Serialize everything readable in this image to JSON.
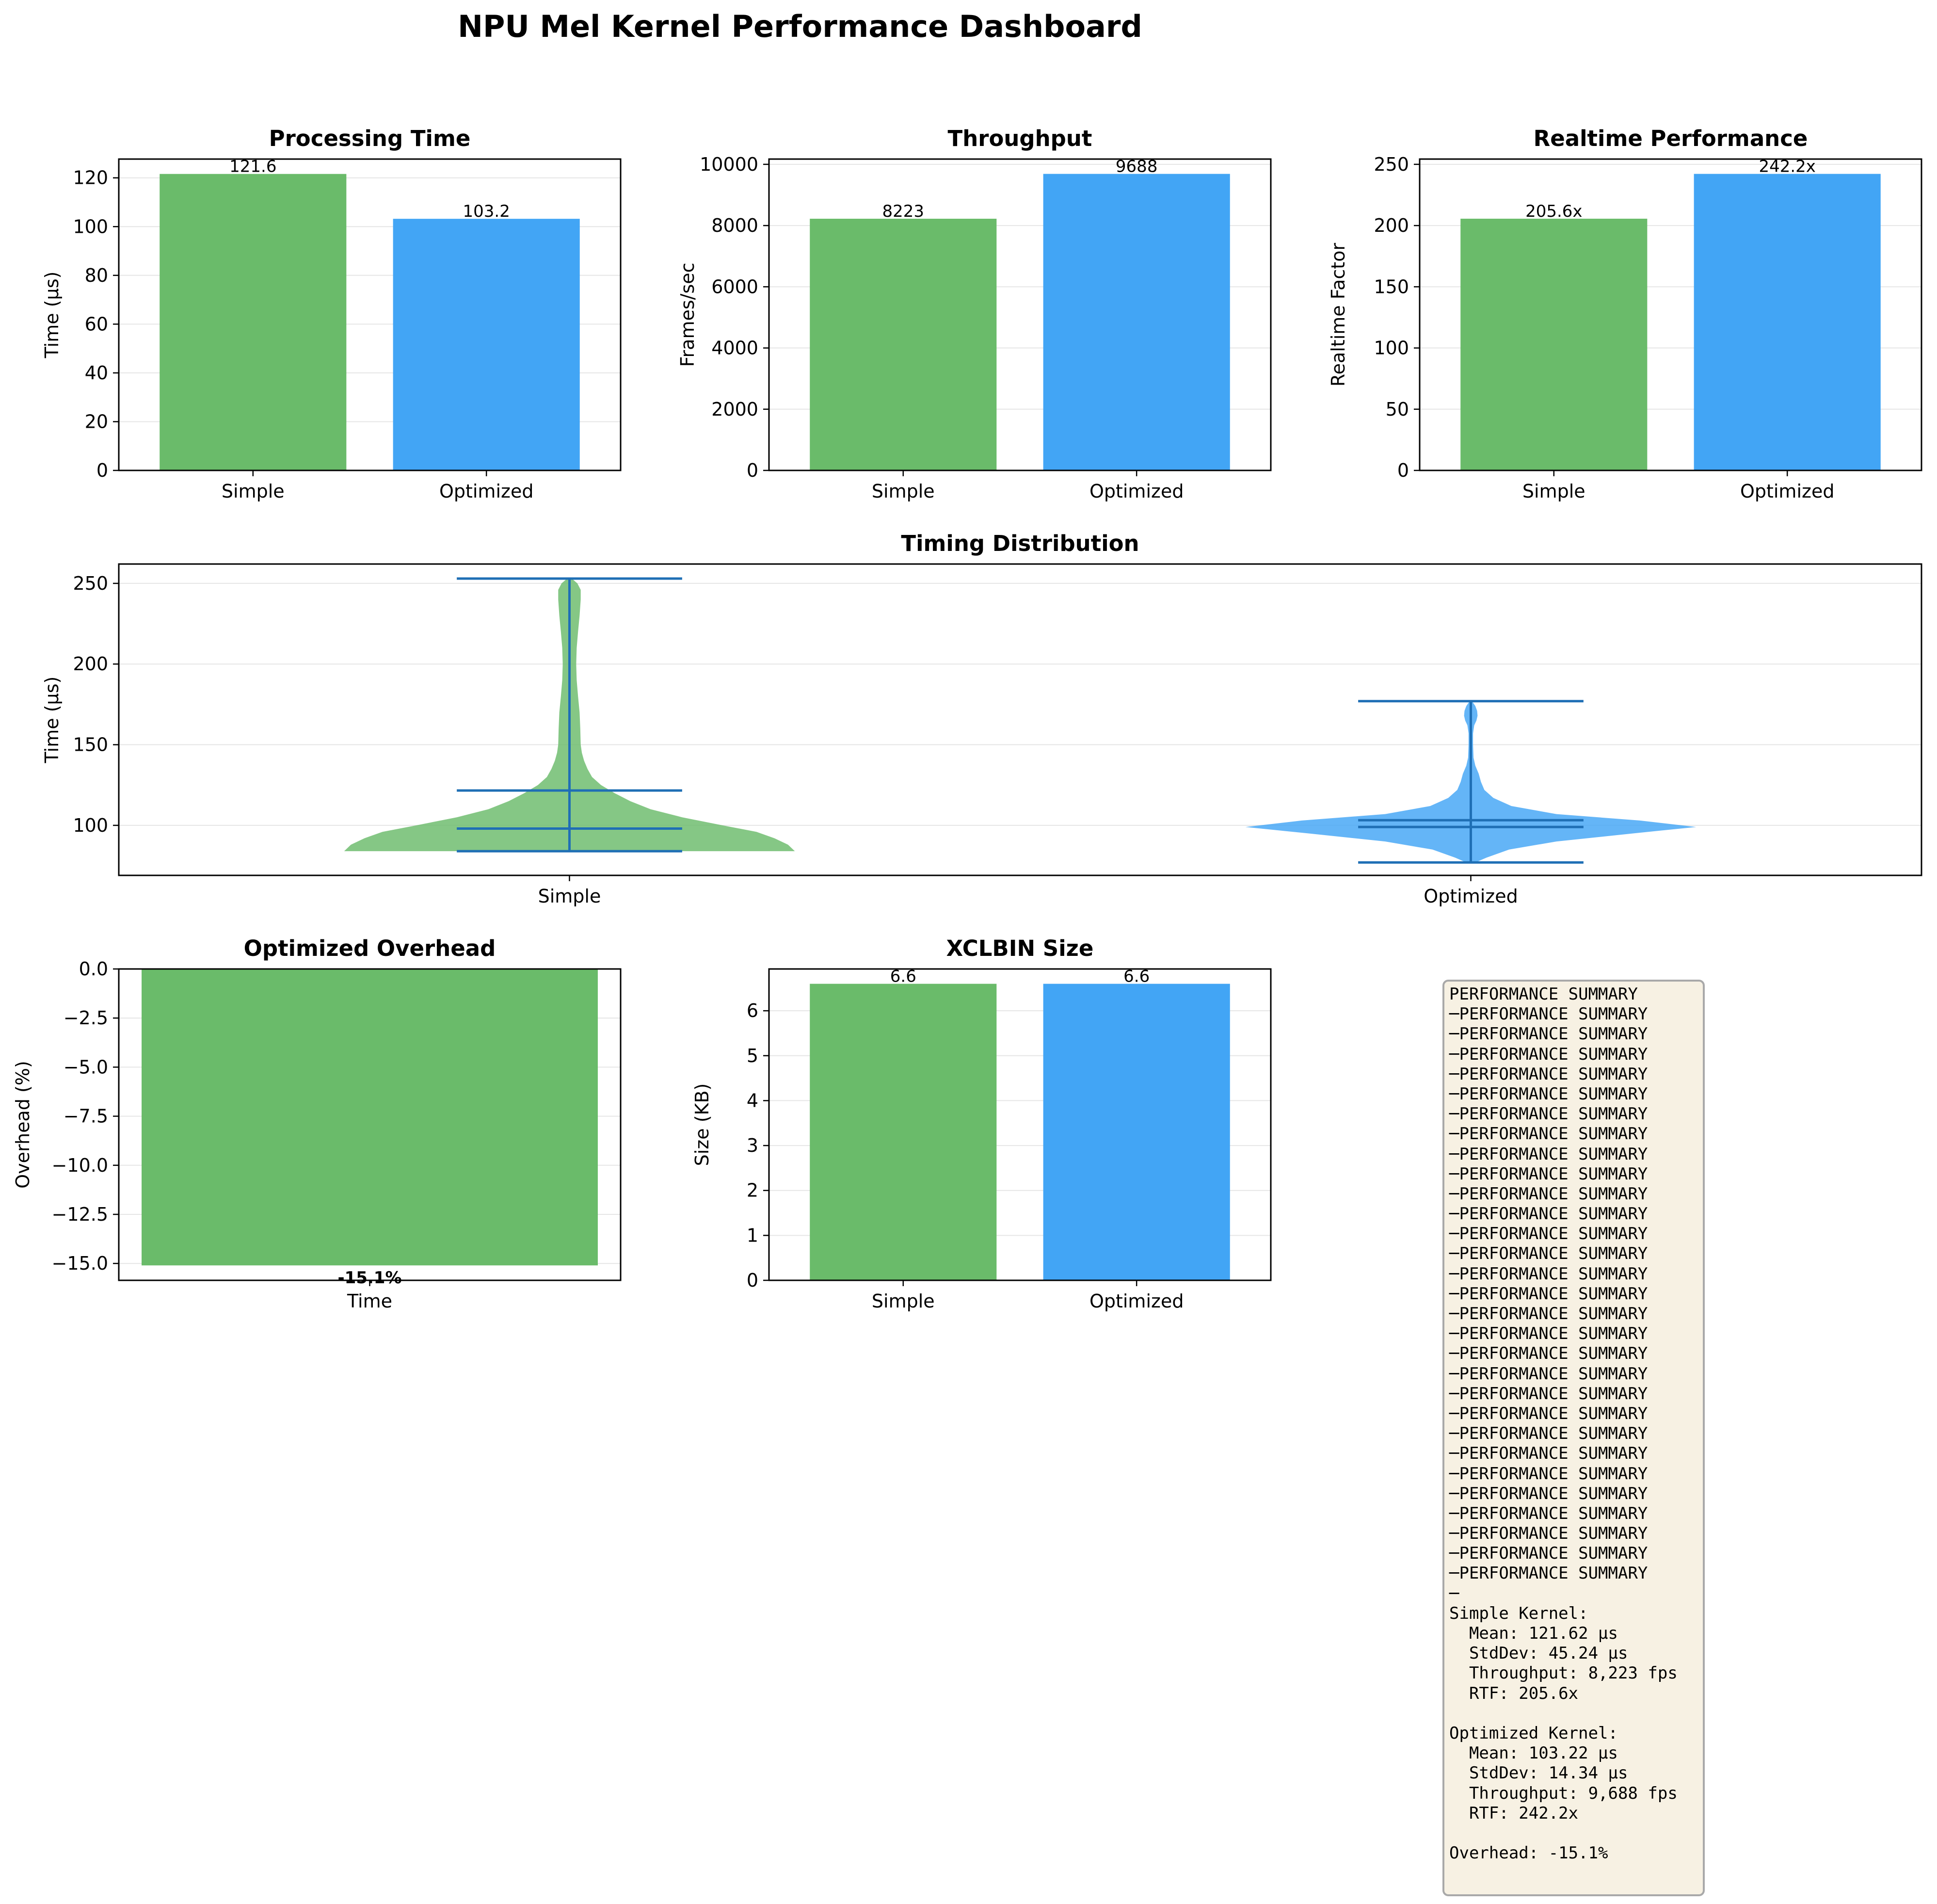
{
  "page_title": "NPU Mel Kernel Performance Dashboard",
  "colors": {
    "simple": "#6abb6a",
    "optimized": "#42a5f5",
    "stat_line": "#1f6fb5",
    "grid": "#e6e6e6",
    "summary_bg": "#f7f1e3",
    "summary_border": "#a9a9a9"
  },
  "chart_data": [
    {
      "id": "processing-time",
      "type": "bar",
      "title": "Processing Time",
      "ylabel": "Time (µs)",
      "xlabel": "",
      "categories": [
        "Simple",
        "Optimized"
      ],
      "values": [
        121.6,
        103.2
      ],
      "value_labels": [
        "121.6",
        "103.2"
      ],
      "ylim": [
        0,
        127.7
      ],
      "yticks": [
        0,
        20,
        40,
        60,
        80,
        100,
        120
      ],
      "ytick_labels": [
        "0",
        "20",
        "40",
        "60",
        "80",
        "100",
        "120"
      ],
      "grid": true
    },
    {
      "id": "throughput",
      "type": "bar",
      "title": "Throughput",
      "ylabel": "Frames/sec",
      "xlabel": "",
      "categories": [
        "Simple",
        "Optimized"
      ],
      "values": [
        8223,
        9688
      ],
      "value_labels": [
        "8223",
        "9688"
      ],
      "ylim": [
        0,
        10172
      ],
      "yticks": [
        0,
        2000,
        4000,
        6000,
        8000,
        10000
      ],
      "ytick_labels": [
        "0",
        "2000",
        "4000",
        "6000",
        "8000",
        "10000"
      ],
      "grid": true
    },
    {
      "id": "realtime-performance",
      "type": "bar",
      "title": "Realtime Performance",
      "ylabel": "Realtime Factor",
      "xlabel": "",
      "categories": [
        "Simple",
        "Optimized"
      ],
      "values": [
        205.6,
        242.2
      ],
      "value_labels": [
        "205.6x",
        "242.2x"
      ],
      "ylim": [
        0,
        254.3
      ],
      "yticks": [
        0,
        50,
        100,
        150,
        200,
        250
      ],
      "ytick_labels": [
        "0",
        "50",
        "100",
        "150",
        "200",
        "250"
      ],
      "grid": true
    },
    {
      "id": "timing-distribution",
      "type": "violin",
      "title": "Timing Distribution",
      "ylabel": "Time (µs)",
      "xlabel": "",
      "categories": [
        "Simple",
        "Optimized"
      ],
      "ylim": [
        69,
        262
      ],
      "yticks": [
        100,
        150,
        200,
        250
      ],
      "ytick_labels": [
        "100",
        "150",
        "200",
        "250"
      ],
      "grid": true,
      "series": [
        {
          "category": "Simple",
          "min": 84,
          "max": 253,
          "mean": 121.6,
          "median": 98,
          "density": [
            [
              84,
              1.0
            ],
            [
              88,
              0.97
            ],
            [
              92,
              0.91
            ],
            [
              96,
              0.83
            ],
            [
              100,
              0.68
            ],
            [
              105,
              0.5
            ],
            [
              110,
              0.36
            ],
            [
              115,
              0.27
            ],
            [
              120,
              0.2
            ],
            [
              125,
              0.14
            ],
            [
              130,
              0.1
            ],
            [
              135,
              0.08
            ],
            [
              140,
              0.065
            ],
            [
              145,
              0.055
            ],
            [
              150,
              0.05
            ],
            [
              160,
              0.048
            ],
            [
              170,
              0.045
            ],
            [
              180,
              0.038
            ],
            [
              190,
              0.032
            ],
            [
              200,
              0.03
            ],
            [
              210,
              0.032
            ],
            [
              220,
              0.038
            ],
            [
              230,
              0.045
            ],
            [
              240,
              0.05
            ],
            [
              246,
              0.05
            ],
            [
              250,
              0.035
            ],
            [
              253,
              0.01
            ]
          ]
        },
        {
          "category": "Optimized",
          "min": 77,
          "max": 177,
          "mean": 103.2,
          "median": 99,
          "density": [
            [
              77,
              0.02
            ],
            [
              80,
              0.07
            ],
            [
              85,
              0.17
            ],
            [
              90,
              0.38
            ],
            [
              95,
              0.72
            ],
            [
              99,
              1.0
            ],
            [
              103,
              0.75
            ],
            [
              107,
              0.38
            ],
            [
              112,
              0.18
            ],
            [
              117,
              0.1
            ],
            [
              122,
              0.06
            ],
            [
              127,
              0.045
            ],
            [
              132,
              0.035
            ],
            [
              137,
              0.02
            ],
            [
              142,
              0.012
            ],
            [
              150,
              0.01
            ],
            [
              157,
              0.01
            ],
            [
              162,
              0.015
            ],
            [
              165,
              0.025
            ],
            [
              168,
              0.03
            ],
            [
              171,
              0.028
            ],
            [
              174,
              0.02
            ],
            [
              177,
              0.005
            ]
          ]
        }
      ]
    },
    {
      "id": "optimized-overhead",
      "type": "bar",
      "title": "Optimized Overhead",
      "ylabel": "Overhead (%)",
      "xlabel": "",
      "categories": [
        "Time"
      ],
      "values": [
        -15.1
      ],
      "value_labels": [
        "-15.1%"
      ],
      "ylim": [
        -15.86,
        0
      ],
      "yticks": [
        0,
        -2.5,
        -5,
        -7.5,
        -10,
        -12.5,
        -15
      ],
      "ytick_labels": [
        "0.0",
        "−2.5",
        "−5.0",
        "−7.5",
        "−10.0",
        "−12.5",
        "−15.0"
      ],
      "grid": true
    },
    {
      "id": "xclbin-size",
      "type": "bar",
      "title": "XCLBIN Size",
      "ylabel": "Size (KB)",
      "xlabel": "",
      "categories": [
        "Simple",
        "Optimized"
      ],
      "values": [
        6.6,
        6.6
      ],
      "value_labels": [
        "6.6",
        "6.6"
      ],
      "ylim": [
        0,
        6.93
      ],
      "yticks": [
        0,
        1,
        2,
        3,
        4,
        5,
        6
      ],
      "ytick_labels": [
        "0",
        "1",
        "2",
        "3",
        "4",
        "5",
        "6"
      ],
      "grid": true
    }
  ],
  "summary": {
    "lines": [
      "PERFORMANCE SUMMARY",
      "─PERFORMANCE SUMMARY",
      "─PERFORMANCE SUMMARY",
      "─PERFORMANCE SUMMARY",
      "─PERFORMANCE SUMMARY",
      "─PERFORMANCE SUMMARY",
      "─PERFORMANCE SUMMARY",
      "─PERFORMANCE SUMMARY",
      "─PERFORMANCE SUMMARY",
      "─PERFORMANCE SUMMARY",
      "─PERFORMANCE SUMMARY",
      "─PERFORMANCE SUMMARY",
      "─PERFORMANCE SUMMARY",
      "─PERFORMANCE SUMMARY",
      "─PERFORMANCE SUMMARY",
      "─PERFORMANCE SUMMARY",
      "─PERFORMANCE SUMMARY",
      "─PERFORMANCE SUMMARY",
      "─PERFORMANCE SUMMARY",
      "─PERFORMANCE SUMMARY",
      "─PERFORMANCE SUMMARY",
      "─PERFORMANCE SUMMARY",
      "─PERFORMANCE SUMMARY",
      "─PERFORMANCE SUMMARY",
      "─PERFORMANCE SUMMARY",
      "─PERFORMANCE SUMMARY",
      "─PERFORMANCE SUMMARY",
      "─PERFORMANCE SUMMARY",
      "─PERFORMANCE SUMMARY",
      "─PERFORMANCE SUMMARY",
      "─",
      "Simple Kernel:",
      "  Mean: 121.62 µs",
      "  StdDev: 45.24 µs",
      "  Throughput: 8,223 fps",
      "  RTF: 205.6x",
      "",
      "Optimized Kernel:",
      "  Mean: 103.22 µs",
      "  StdDev: 14.34 µs",
      "  Throughput: 9,688 fps",
      "  RTF: 242.2x",
      "",
      "Overhead: -15.1%"
    ]
  }
}
